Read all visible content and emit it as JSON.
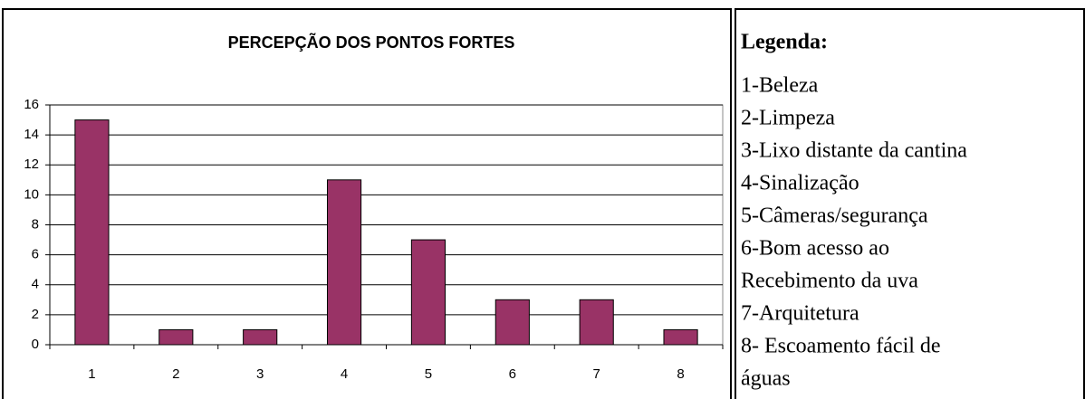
{
  "chart_data": {
    "type": "bar",
    "title": "PERCEPÇÃO DOS PONTOS FORTES",
    "categories": [
      "1",
      "2",
      "3",
      "4",
      "5",
      "6",
      "7",
      "8"
    ],
    "values": [
      15,
      1,
      1,
      11,
      7,
      3,
      3,
      1
    ],
    "color": "#993366",
    "ylim": [
      0,
      16
    ],
    "yticks": [
      0,
      2,
      4,
      6,
      8,
      10,
      12,
      14,
      16
    ],
    "grid": true
  },
  "legend": {
    "title": "Legenda:",
    "lines": [
      "1-Beleza",
      "2-Limpeza",
      "3-Lixo distante da cantina",
      "4-Sinalização",
      "5-Câmeras/segurança",
      "6-Bom acesso ao",
      "Recebimento da uva",
      "7-Arquitetura",
      "8- Escoamento fácil de",
      "águas"
    ]
  }
}
